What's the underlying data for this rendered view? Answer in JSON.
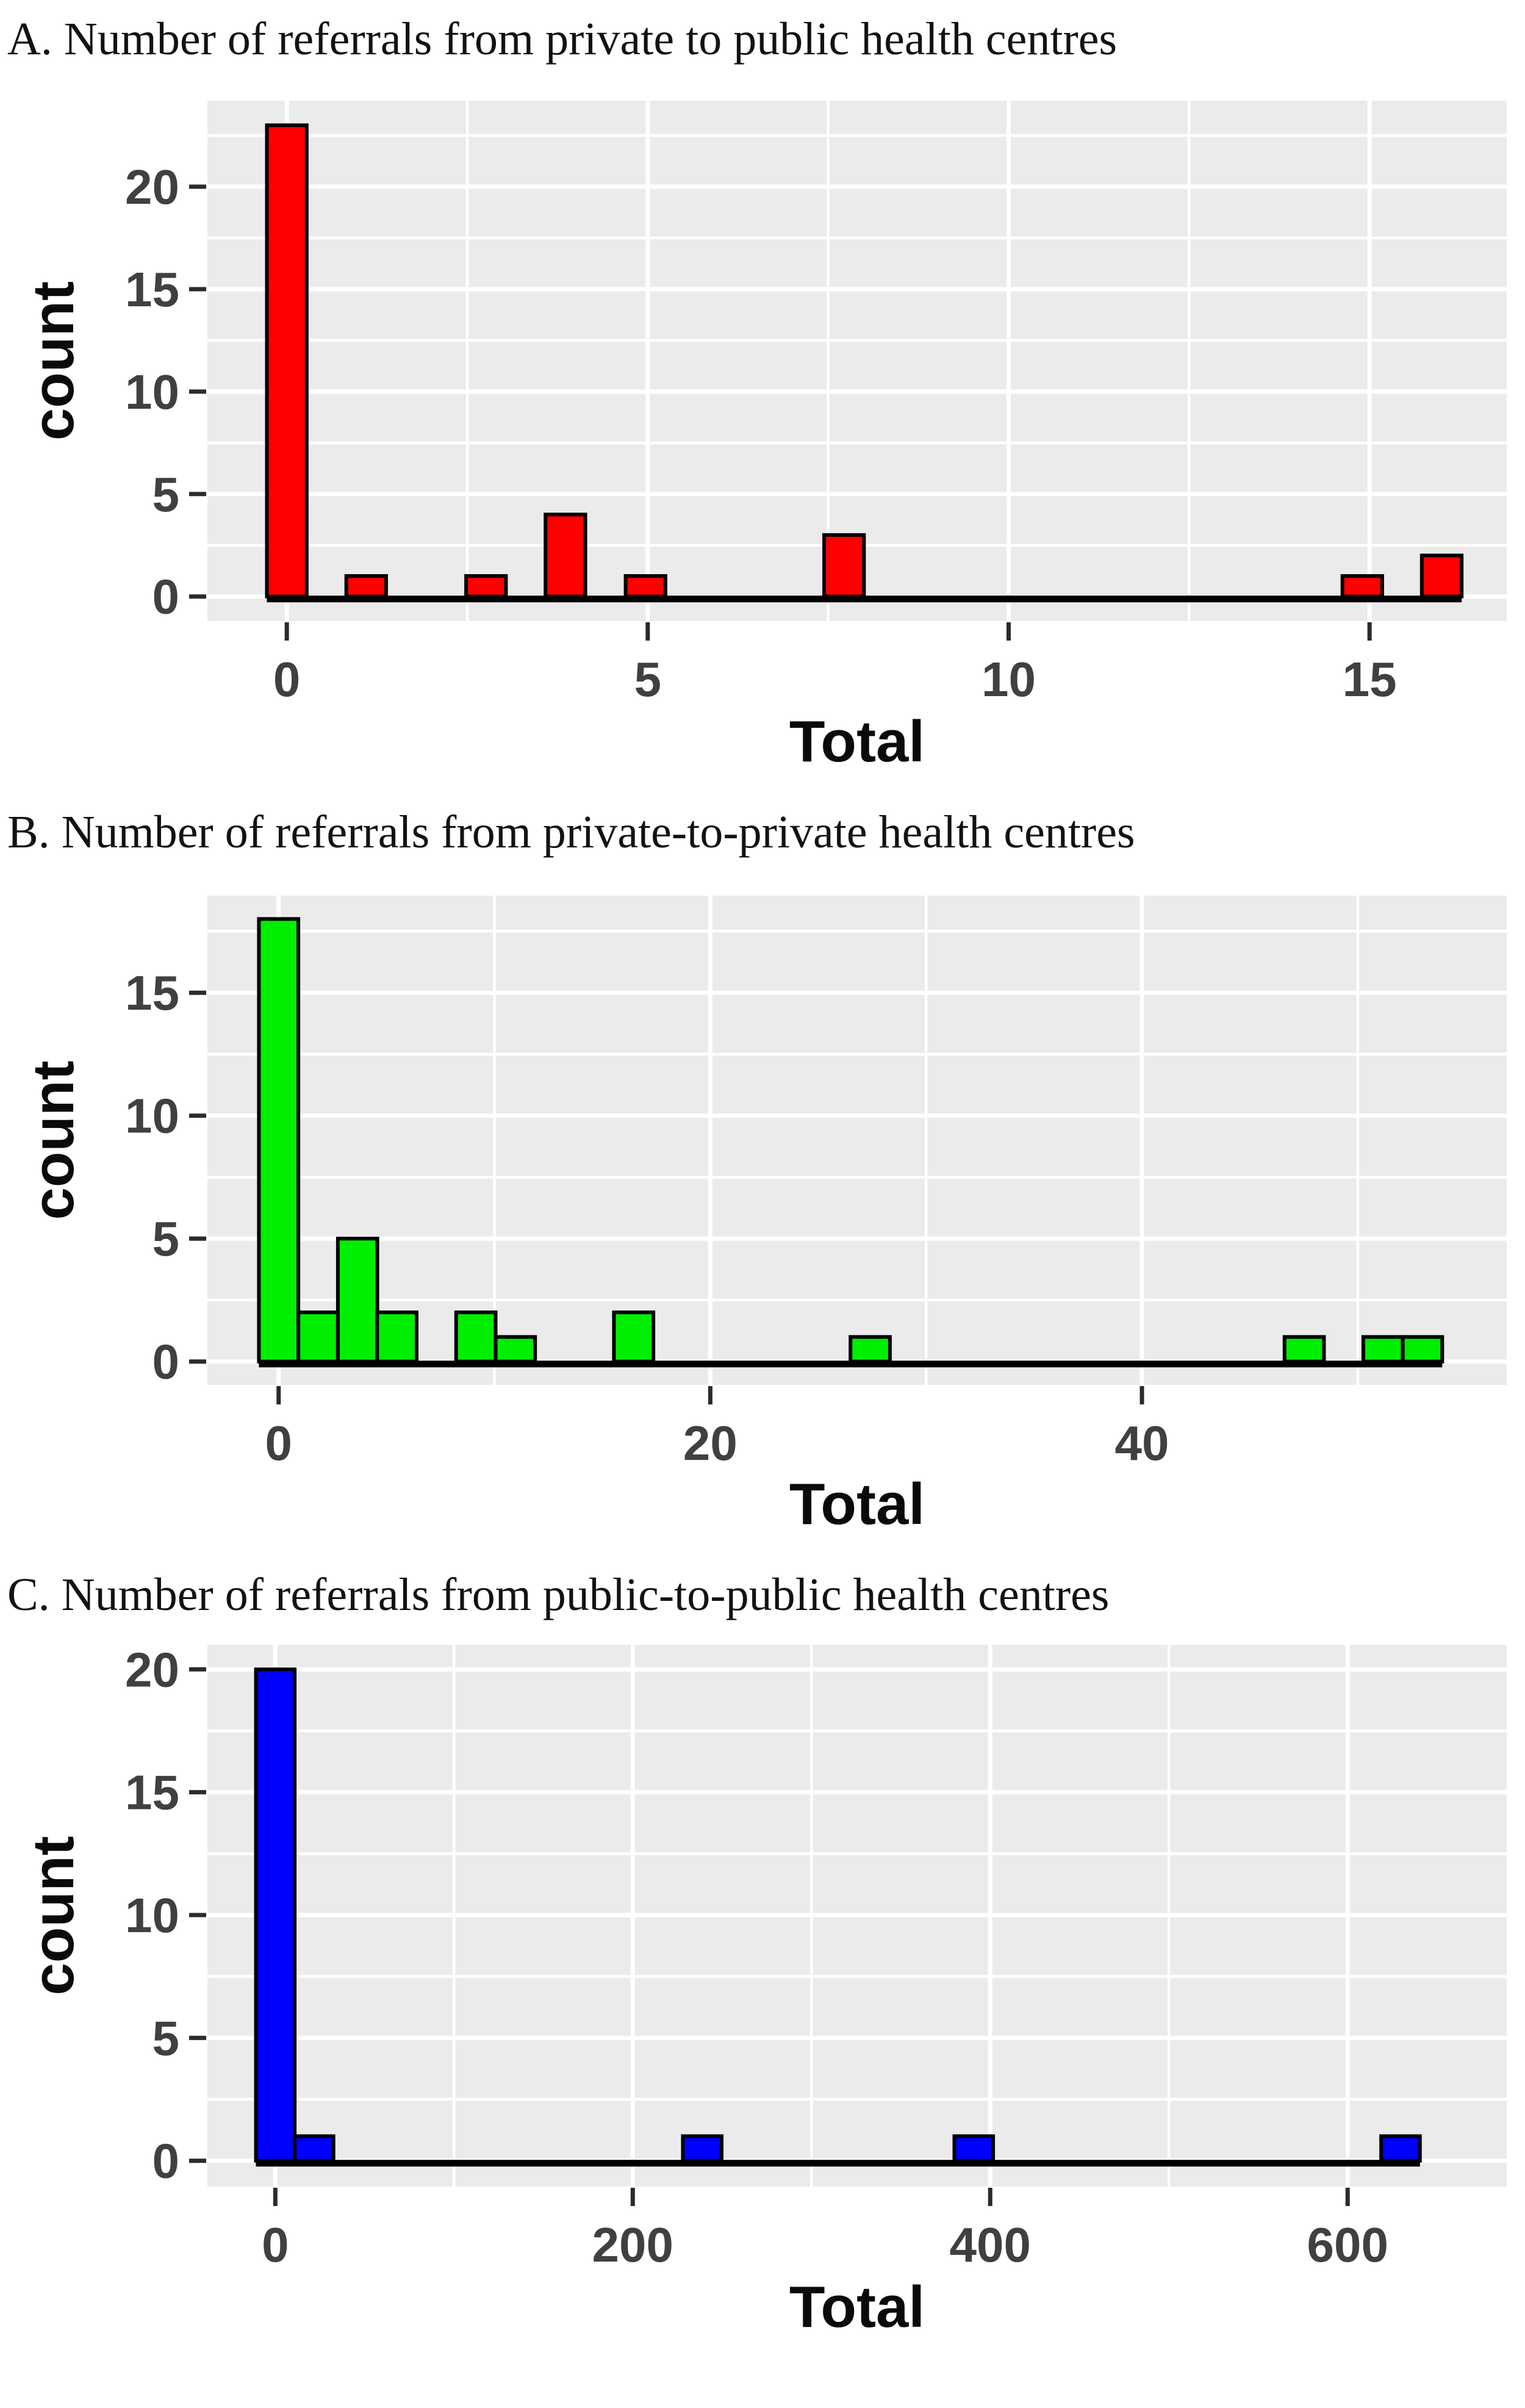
{
  "figure": {
    "background": "#FFFFFF",
    "panel_background": "#EBEBEB",
    "gridline_color": "#FFFFFF",
    "axis_text_color": "#404040",
    "axis_title_color": "#0A0A0A",
    "bar_outline_color": "#000000"
  },
  "chart_data": [
    {
      "type": "bar",
      "subtype": "histogram",
      "title": "A. Number of referrals from private to public health centres",
      "xlabel": "Total",
      "ylabel": "count",
      "bar_color": "#FF0000",
      "panel_bg": "#EBEBEB",
      "grid_color": "#FFFFFF",
      "bin_width": 0.552,
      "xlim": [
        -1.1,
        16.9
      ],
      "ylim": [
        -1.2,
        24.2
      ],
      "x_major_ticks": [
        0,
        5,
        10,
        15
      ],
      "x_minor_ticks": [
        2.5,
        7.5,
        12.5
      ],
      "y_major_ticks": [
        0,
        5,
        10,
        15,
        20
      ],
      "y_minor_ticks": [
        2.5,
        7.5,
        12.5,
        17.5,
        22.5
      ],
      "bars": [
        {
          "x": 0,
          "count": 23
        },
        {
          "x": 1.1,
          "count": 1
        },
        {
          "x": 2.76,
          "count": 1
        },
        {
          "x": 3.86,
          "count": 4
        },
        {
          "x": 4.97,
          "count": 1
        },
        {
          "x": 7.72,
          "count": 3
        },
        {
          "x": 14.9,
          "count": 1
        },
        {
          "x": 16.0,
          "count": 2
        }
      ]
    },
    {
      "type": "bar",
      "subtype": "histogram",
      "title": "B. Number of referrals from private-to-private health centres",
      "xlabel": "Total",
      "ylabel": "count",
      "bar_color": "#00EE00",
      "panel_bg": "#EBEBEB",
      "grid_color": "#FFFFFF",
      "bin_width": 1.828,
      "xlim": [
        -3.3,
        56.9
      ],
      "ylim": [
        -0.95,
        18.95
      ],
      "x_major_ticks": [
        0,
        20,
        40
      ],
      "x_minor_ticks": [
        10,
        30,
        50
      ],
      "y_major_ticks": [
        0,
        5,
        10,
        15
      ],
      "y_minor_ticks": [
        2.5,
        7.5,
        12.5,
        17.5
      ],
      "bars": [
        {
          "x": 0,
          "count": 18
        },
        {
          "x": 1.83,
          "count": 2
        },
        {
          "x": 3.66,
          "count": 5
        },
        {
          "x": 5.48,
          "count": 2
        },
        {
          "x": 9.14,
          "count": 2
        },
        {
          "x": 10.97,
          "count": 1
        },
        {
          "x": 16.45,
          "count": 2
        },
        {
          "x": 27.41,
          "count": 1
        },
        {
          "x": 47.52,
          "count": 1
        },
        {
          "x": 51.17,
          "count": 1
        },
        {
          "x": 53.0,
          "count": 1
        }
      ]
    },
    {
      "type": "bar",
      "subtype": "histogram",
      "title": "C. Number of referrals from public-to-public health centres",
      "xlabel": "Total",
      "ylabel": "count",
      "bar_color": "#0000FF",
      "panel_bg": "#EBEBEB",
      "grid_color": "#FFFFFF",
      "bin_width": 21.7,
      "xlim": [
        -38,
        689
      ],
      "ylim": [
        -1.05,
        21
      ],
      "x_major_ticks": [
        0,
        200,
        400,
        600
      ],
      "x_minor_ticks": [
        100,
        300,
        500
      ],
      "y_major_ticks": [
        0,
        5,
        10,
        15,
        20
      ],
      "y_minor_ticks": [
        2.5,
        7.5,
        12.5,
        17.5
      ],
      "bars": [
        {
          "x": 0,
          "count": 20
        },
        {
          "x": 21.7,
          "count": 1
        },
        {
          "x": 238.9,
          "count": 1
        },
        {
          "x": 390.8,
          "count": 1
        },
        {
          "x": 629.6,
          "count": 1
        }
      ]
    }
  ]
}
